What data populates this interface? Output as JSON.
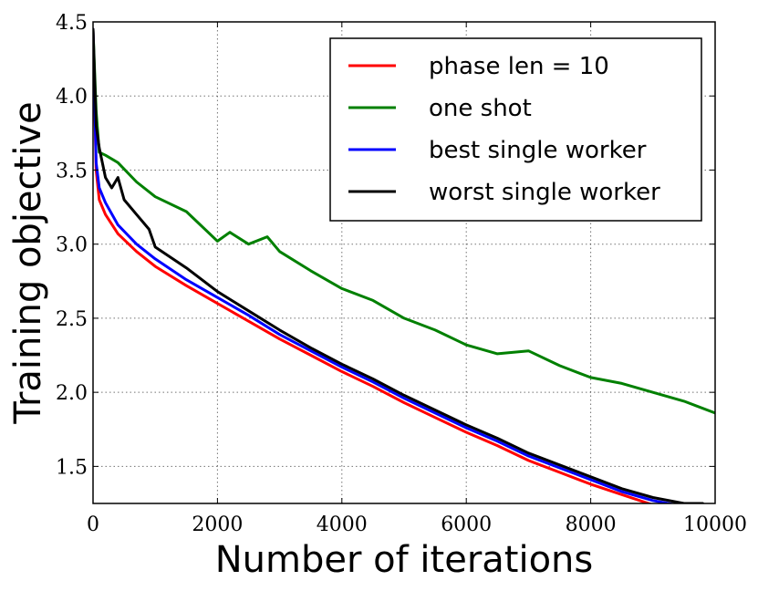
{
  "chart_data": {
    "type": "line",
    "xlabel": "Number of iterations",
    "ylabel": "Training objective",
    "xlim": [
      0,
      10000
    ],
    "ylim": [
      1.25,
      4.5
    ],
    "xticks": [
      0,
      2000,
      4000,
      6000,
      8000,
      10000
    ],
    "yticks": [
      1.5,
      2.0,
      2.5,
      3.0,
      3.5,
      4.0,
      4.5
    ],
    "xtick_labels": [
      "0",
      "2000",
      "4000",
      "6000",
      "8000",
      "10000"
    ],
    "ytick_labels": [
      "1.5",
      "2.0",
      "2.5",
      "3.0",
      "3.5",
      "4.0",
      "4.5"
    ],
    "grid": true,
    "legend_position": "top-right",
    "series": [
      {
        "name": "phase len = 10",
        "color": "#ff0000",
        "x": [
          0,
          50,
          100,
          200,
          400,
          700,
          1000,
          1500,
          2000,
          2500,
          3000,
          3500,
          4000,
          4500,
          5000,
          5500,
          6000,
          6500,
          7000,
          7500,
          8000,
          8500,
          9000,
          9500
        ],
        "y": [
          4.45,
          3.5,
          3.3,
          3.2,
          3.07,
          2.95,
          2.85,
          2.72,
          2.6,
          2.48,
          2.36,
          2.25,
          2.14,
          2.04,
          1.93,
          1.83,
          1.73,
          1.64,
          1.54,
          1.46,
          1.38,
          1.31,
          1.24,
          1.21
        ]
      },
      {
        "name": "one shot",
        "color": "#008000",
        "x": [
          0,
          50,
          100,
          200,
          400,
          700,
          1000,
          1500,
          2000,
          2200,
          2500,
          2800,
          3000,
          3500,
          4000,
          4500,
          5000,
          5500,
          6000,
          6500,
          7000,
          7500,
          8000,
          8500,
          9000,
          9500,
          10000
        ],
        "y": [
          4.45,
          3.9,
          3.62,
          3.6,
          3.55,
          3.42,
          3.32,
          3.22,
          3.02,
          3.08,
          3.0,
          3.05,
          2.95,
          2.82,
          2.7,
          2.62,
          2.5,
          2.42,
          2.32,
          2.26,
          2.28,
          2.18,
          2.1,
          2.06,
          2.0,
          1.94,
          1.86
        ]
      },
      {
        "name": "best single worker",
        "color": "#0000ff",
        "x": [
          0,
          50,
          100,
          200,
          400,
          700,
          1000,
          1500,
          2000,
          2500,
          3000,
          3500,
          4000,
          4500,
          5000,
          5500,
          6000,
          6500,
          7000,
          7500,
          8000,
          8500,
          9000,
          9500
        ],
        "y": [
          4.45,
          3.55,
          3.38,
          3.28,
          3.13,
          3.0,
          2.9,
          2.76,
          2.64,
          2.52,
          2.39,
          2.28,
          2.17,
          2.07,
          1.96,
          1.86,
          1.76,
          1.67,
          1.57,
          1.49,
          1.41,
          1.33,
          1.27,
          1.23
        ]
      },
      {
        "name": "worst single worker",
        "color": "#000000",
        "x": [
          0,
          50,
          100,
          150,
          200,
          300,
          400,
          500,
          700,
          900,
          1000,
          1500,
          2000,
          2500,
          3000,
          3500,
          4000,
          4500,
          5000,
          5500,
          6000,
          6500,
          7000,
          7500,
          8000,
          8500,
          9000,
          9500,
          9800
        ],
        "y": [
          4.45,
          3.8,
          3.65,
          3.55,
          3.45,
          3.38,
          3.45,
          3.3,
          3.2,
          3.1,
          2.98,
          2.84,
          2.68,
          2.55,
          2.42,
          2.3,
          2.19,
          2.09,
          1.98,
          1.88,
          1.78,
          1.69,
          1.59,
          1.51,
          1.43,
          1.35,
          1.29,
          1.25,
          1.25
        ]
      }
    ]
  }
}
